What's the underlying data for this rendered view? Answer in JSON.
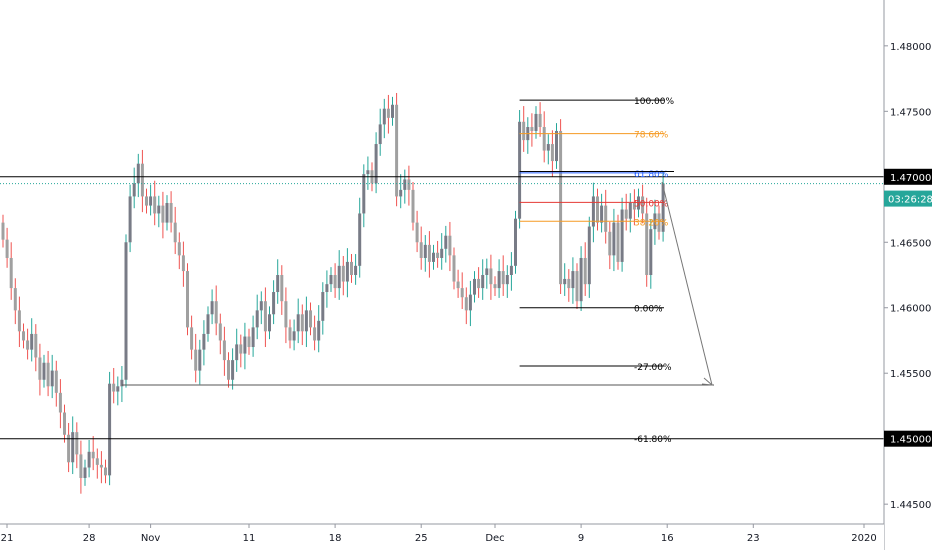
{
  "chart_data": {
    "type": "candlestick",
    "instrument": "",
    "ylim": [
      1.4415,
      1.4835
    ],
    "y_ticks": [
      "1.48000",
      "1.47500",
      "1.46500",
      "1.46000",
      "1.45500",
      "1.44500"
    ],
    "x_ticks": [
      {
        "label": "21",
        "i": 0
      },
      {
        "label": "28",
        "i": 21
      },
      {
        "label": "Nov",
        "i": 36
      },
      {
        "label": "11",
        "i": 60
      },
      {
        "label": "18",
        "i": 81
      },
      {
        "label": "25",
        "i": 102
      },
      {
        "label": "Dec",
        "i": 120
      },
      {
        "label": "9",
        "i": 141
      },
      {
        "label": "16",
        "i": 162
      },
      {
        "label": "23",
        "i": 183
      },
      {
        "label": "2020",
        "i": 210
      }
    ],
    "candles": [
      [
        1.4665,
        1.4652
      ],
      [
        1.4652,
        1.4638
      ],
      [
        1.4638,
        1.4615
      ],
      [
        1.4615,
        1.4598
      ],
      [
        1.4598,
        1.4582
      ],
      [
        1.4582,
        1.4575
      ],
      [
        1.4575,
        1.4568
      ],
      [
        1.4568,
        1.458
      ],
      [
        1.458,
        1.4562
      ],
      [
        1.4562,
        1.4545
      ],
      [
        1.4545,
        1.4558
      ],
      [
        1.4558,
        1.454
      ],
      [
        1.454,
        1.4552
      ],
      [
        1.4552,
        1.4535
      ],
      [
        1.4535,
        1.452
      ],
      [
        1.452,
        1.4503
      ],
      [
        1.4503,
        1.4482
      ],
      [
        1.4482,
        1.4505
      ],
      [
        1.4505,
        1.4488
      ],
      [
        1.4488,
        1.447
      ],
      [
        1.447,
        1.4478
      ],
      [
        1.4478,
        1.449
      ],
      [
        1.449,
        1.4485
      ],
      [
        1.4485,
        1.448
      ],
      [
        1.448,
        1.4478
      ],
      [
        1.4478,
        1.4472
      ],
      [
        1.4472,
        1.4542
      ],
      [
        1.4542,
        1.4536
      ],
      [
        1.4536,
        1.454
      ],
      [
        1.454,
        1.4545
      ],
      [
        1.4545,
        1.465
      ],
      [
        1.465,
        1.4685
      ],
      [
        1.4685,
        1.4695
      ],
      [
        1.4695,
        1.471
      ],
      [
        1.471,
        1.4685
      ],
      [
        1.4685,
        1.4678
      ],
      [
        1.4678,
        1.4685
      ],
      [
        1.4685,
        1.4672
      ],
      [
        1.4672,
        1.4678
      ],
      [
        1.4678,
        1.4665
      ],
      [
        1.4665,
        1.468
      ],
      [
        1.468,
        1.4665
      ],
      [
        1.4665,
        1.465
      ],
      [
        1.465,
        1.464
      ],
      [
        1.464,
        1.4628
      ],
      [
        1.4628,
        1.4585
      ],
      [
        1.4585,
        1.4568
      ],
      [
        1.4568,
        1.4552
      ],
      [
        1.4552,
        1.4568
      ],
      [
        1.4568,
        1.458
      ],
      [
        1.458,
        1.4595
      ],
      [
        1.4595,
        1.4605
      ],
      [
        1.4605,
        1.4588
      ],
      [
        1.4588,
        1.4575
      ],
      [
        1.4575,
        1.456
      ],
      [
        1.456,
        1.4545
      ],
      [
        1.4545,
        1.456
      ],
      [
        1.456,
        1.4572
      ],
      [
        1.4572,
        1.4565
      ],
      [
        1.4565,
        1.4578
      ],
      [
        1.4578,
        1.457
      ],
      [
        1.457,
        1.4585
      ],
      [
        1.4585,
        1.4598
      ],
      [
        1.4598,
        1.4605
      ],
      [
        1.4605,
        1.4582
      ],
      [
        1.4582,
        1.4595
      ],
      [
        1.4595,
        1.4612
      ],
      [
        1.4612,
        1.4625
      ],
      [
        1.4625,
        1.4605
      ],
      [
        1.4605,
        1.4585
      ],
      [
        1.4585,
        1.4575
      ],
      [
        1.4575,
        1.4582
      ],
      [
        1.4582,
        1.4595
      ],
      [
        1.4595,
        1.4582
      ],
      [
        1.4582,
        1.4598
      ],
      [
        1.4598,
        1.4585
      ],
      [
        1.4585,
        1.4575
      ],
      [
        1.4575,
        1.459
      ],
      [
        1.459,
        1.4612
      ],
      [
        1.4612,
        1.4618
      ],
      [
        1.4618,
        1.4625
      ],
      [
        1.4625,
        1.4615
      ],
      [
        1.4615,
        1.4632
      ],
      [
        1.4632,
        1.462
      ],
      [
        1.462,
        1.4635
      ],
      [
        1.4635,
        1.4625
      ],
      [
        1.4625,
        1.4632
      ],
      [
        1.4632,
        1.4672
      ],
      [
        1.4672,
        1.4702
      ],
      [
        1.4702,
        1.4705
      ],
      [
        1.4705,
        1.4695
      ],
      [
        1.4695,
        1.4725
      ],
      [
        1.4725,
        1.474
      ],
      [
        1.474,
        1.4752
      ],
      [
        1.4752,
        1.4745
      ],
      [
        1.4745,
        1.4755
      ],
      [
        1.4755,
        1.4685
      ],
      [
        1.4685,
        1.469
      ],
      [
        1.469,
        1.4698
      ],
      [
        1.4698,
        1.469
      ],
      [
        1.469,
        1.4665
      ],
      [
        1.4665,
        1.465
      ],
      [
        1.465,
        1.4638
      ],
      [
        1.4638,
        1.4648
      ],
      [
        1.4648,
        1.4635
      ],
      [
        1.4635,
        1.4642
      ],
      [
        1.4642,
        1.4638
      ],
      [
        1.4638,
        1.4645
      ],
      [
        1.4645,
        1.4655
      ],
      [
        1.4655,
        1.464
      ],
      [
        1.464,
        1.462
      ],
      [
        1.462,
        1.4615
      ],
      [
        1.4615,
        1.4608
      ],
      [
        1.4608,
        1.4598
      ],
      [
        1.4598,
        1.461
      ],
      [
        1.461,
        1.4622
      ],
      [
        1.4622,
        1.4615
      ],
      [
        1.4615,
        1.4625
      ],
      [
        1.4625,
        1.463
      ],
      [
        1.463,
        1.4618
      ],
      [
        1.4618,
        1.4615
      ],
      [
        1.4615,
        1.4628
      ],
      [
        1.4628,
        1.4618
      ],
      [
        1.4618,
        1.4625
      ],
      [
        1.4625,
        1.4632
      ],
      [
        1.4632,
        1.4668
      ],
      [
        1.4668,
        1.4742
      ],
      [
        1.4742,
        1.4728
      ],
      [
        1.4728,
        1.4738
      ],
      [
        1.4738,
        1.4735
      ],
      [
        1.4735,
        1.4748
      ],
      [
        1.4748,
        1.4738
      ],
      [
        1.4738,
        1.472
      ],
      [
        1.472,
        1.4725
      ],
      [
        1.4725,
        1.4712
      ],
      [
        1.4712,
        1.4735
      ],
      [
        1.4735,
        1.4618
      ],
      [
        1.4618,
        1.4622
      ],
      [
        1.4622,
        1.4615
      ],
      [
        1.4615,
        1.4628
      ],
      [
        1.4628,
        1.4605
      ],
      [
        1.4605,
        1.4638
      ],
      [
        1.4638,
        1.4618
      ],
      [
        1.4618,
        1.4662
      ],
      [
        1.4662,
        1.4685
      ],
      [
        1.4685,
        1.4665
      ],
      [
        1.4665,
        1.4678
      ],
      [
        1.4678,
        1.4658
      ],
      [
        1.4658,
        1.464
      ],
      [
        1.464,
        1.4665
      ],
      [
        1.4665,
        1.4635
      ],
      [
        1.4635,
        1.4675
      ],
      [
        1.4675,
        1.4668
      ],
      [
        1.4668,
        1.468
      ],
      [
        1.468,
        1.4675
      ],
      [
        1.4675,
        1.4685
      ],
      [
        1.4685,
        1.4672
      ],
      [
        1.4672,
        1.4625
      ],
      [
        1.4625,
        1.466
      ],
      [
        1.466,
        1.4672
      ],
      [
        1.4672,
        1.4658
      ],
      [
        1.4658,
        1.4695
      ]
    ],
    "horizontal_lines": [
      {
        "price": 1.47,
        "label": "1.47000",
        "color": "#000000"
      },
      {
        "price": 1.45,
        "label": "1.45000",
        "color": "#000000"
      }
    ],
    "current_price": {
      "price": 1.46948,
      "countdown": "03:26:28",
      "color": "#26a69a"
    },
    "fib_levels": [
      {
        "label": "100.00%",
        "price": 1.47585,
        "color": "#000000"
      },
      {
        "label": "78.60%",
        "price": 1.4733,
        "color": "#f59a23"
      },
      {
        "label": "61.80%",
        "price": 1.4703,
        "color": "#2962ff"
      },
      {
        "label": "50.00%",
        "price": 1.46805,
        "color": "#e53935"
      },
      {
        "label": "38.20%",
        "price": 1.4666,
        "color": "#f59a23"
      },
      {
        "label": "0.00%",
        "price": 1.46,
        "color": "#000000"
      },
      {
        "label": "-27.00%",
        "price": 1.45555,
        "color": "#000000"
      },
      {
        "label": "-61.80%",
        "price": 1.45005,
        "color": "#000000"
      }
    ],
    "colors": {
      "up": "#26a69a",
      "down": "#ef5350",
      "candle_up_body": "#787b86",
      "candle_down_body": "#a0a0a0"
    }
  }
}
